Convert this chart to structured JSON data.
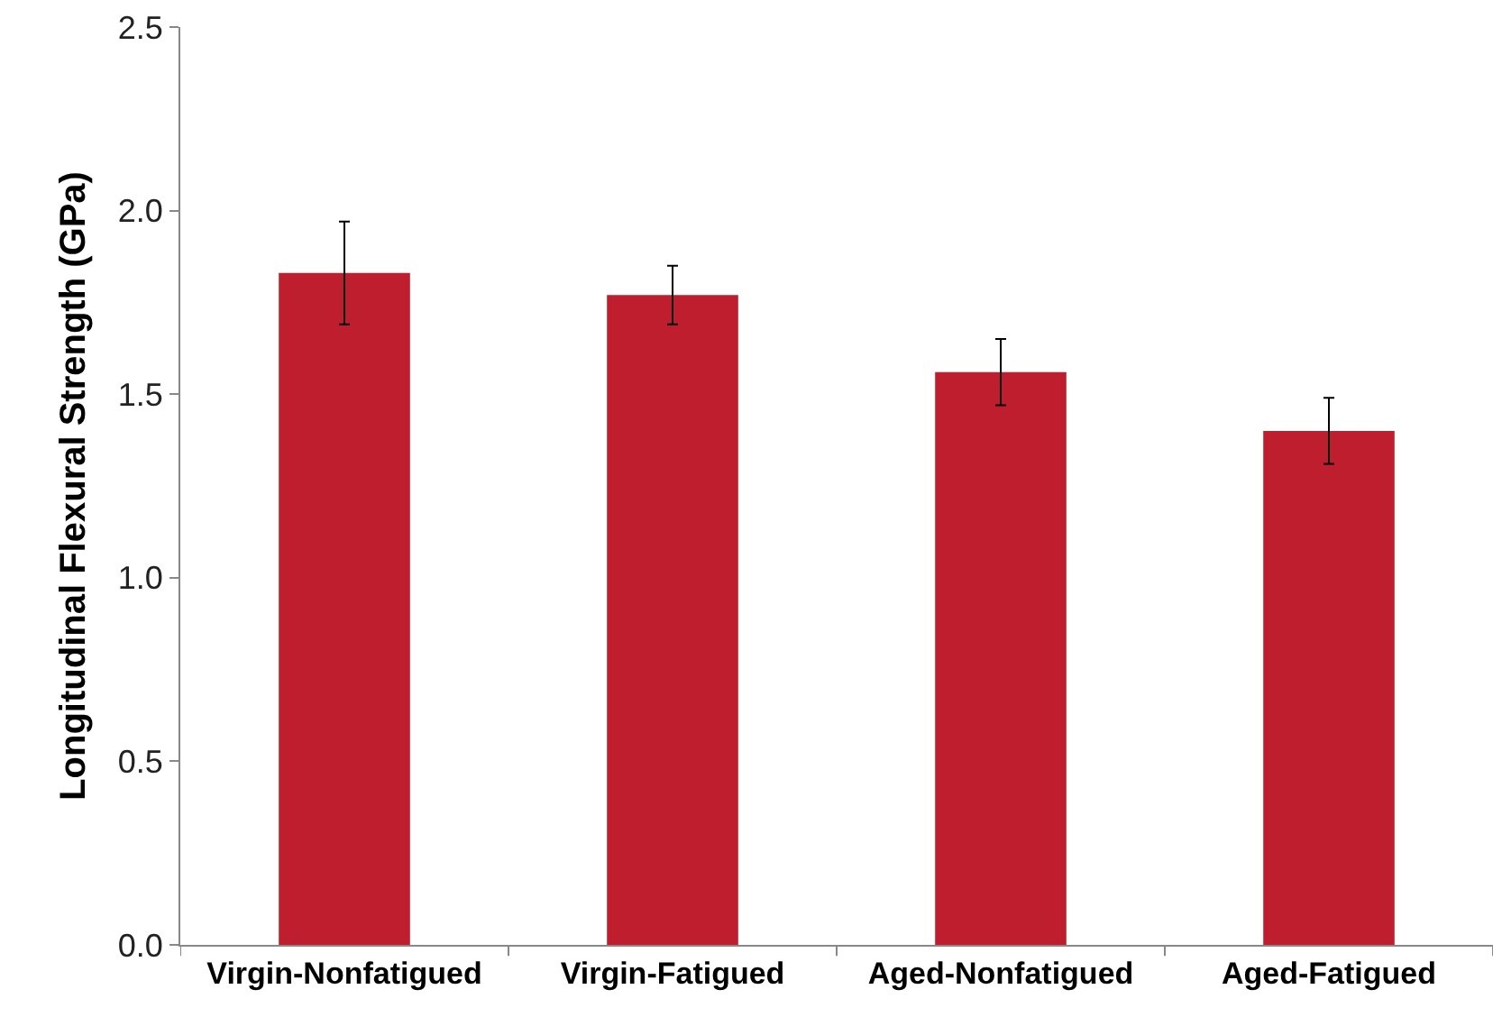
{
  "chart_data": {
    "type": "bar",
    "ylabel": "Longitudinal Flexural Strength (GPa)",
    "categories": [
      "Virgin-Nonfatigued",
      "Virgin-Fatigued",
      "Aged-Nonfatigued",
      "Aged-Fatigued"
    ],
    "values": [
      1.83,
      1.77,
      1.56,
      1.4
    ],
    "errors": [
      [
        1.69,
        1.97
      ],
      [
        1.69,
        1.85
      ],
      [
        1.47,
        1.65
      ],
      [
        1.31,
        1.49
      ]
    ],
    "color": "#be1e2d",
    "ylim": [
      0,
      2.5
    ],
    "yticks": [
      {
        "value": 0,
        "label": "0.0"
      },
      {
        "value": 0.5,
        "label": "0.5"
      },
      {
        "value": 1,
        "label": "1.0"
      },
      {
        "value": 1.5,
        "label": "1.5"
      },
      {
        "value": 2,
        "label": "2.0"
      },
      {
        "value": 2.5,
        "label": "2.5"
      }
    ],
    "tick_labels": true
  }
}
